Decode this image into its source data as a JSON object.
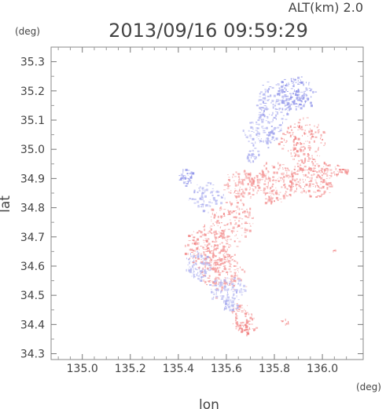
{
  "header": {
    "altitude_label": "ALT(km) 2.0",
    "timestamp": "2013/09/16 09:59:29"
  },
  "chart_data": {
    "type": "heatmap",
    "title": "2013/09/16 09:59:29",
    "subtitle": "ALT(km) 2.0",
    "xlabel": "lon",
    "ylabel": "lat",
    "x_unit": "(deg)",
    "y_unit": "(deg)",
    "xlim": [
      134.87,
      136.17
    ],
    "ylim": [
      34.28,
      35.35
    ],
    "xticks": [
      135.0,
      135.2,
      135.4,
      135.6,
      135.8,
      136.0
    ],
    "yticks": [
      34.3,
      34.4,
      34.5,
      34.6,
      34.7,
      34.8,
      34.9,
      35.0,
      35.1,
      35.2,
      35.3
    ],
    "xtick_labels": [
      "135.0",
      "135.2",
      "135.4",
      "135.6",
      "135.8",
      "136.0"
    ],
    "ytick_labels": [
      "34.3",
      "34.4",
      "34.5",
      "34.6",
      "34.7",
      "34.8",
      "34.9",
      "35.0",
      "35.1",
      "35.2",
      "35.3"
    ],
    "grid": false,
    "colors": {
      "positive": "#ef6f6f",
      "negative": "#7d82e6",
      "positive_soft": "#f7b6b6",
      "negative_soft": "#c7c9f4"
    },
    "clusters": [
      {
        "lon": 135.88,
        "lat": 35.19,
        "rx": 0.08,
        "ry": 0.06,
        "count": 180,
        "value": -0.65
      },
      {
        "lon": 135.79,
        "lat": 35.15,
        "rx": 0.07,
        "ry": 0.09,
        "count": 120,
        "value": -0.45
      },
      {
        "lon": 135.74,
        "lat": 35.06,
        "rx": 0.08,
        "ry": 0.05,
        "count": 90,
        "value": -0.3
      },
      {
        "lon": 135.92,
        "lat": 35.03,
        "rx": 0.1,
        "ry": 0.07,
        "count": 140,
        "value": 0.55
      },
      {
        "lon": 135.96,
        "lat": 34.91,
        "rx": 0.11,
        "ry": 0.07,
        "count": 220,
        "value": 0.45
      },
      {
        "lon": 135.8,
        "lat": 34.89,
        "rx": 0.1,
        "ry": 0.07,
        "count": 170,
        "value": 0.4
      },
      {
        "lon": 135.66,
        "lat": 34.88,
        "rx": 0.08,
        "ry": 0.05,
        "count": 110,
        "value": 0.35
      },
      {
        "lon": 135.52,
        "lat": 34.84,
        "rx": 0.07,
        "ry": 0.05,
        "count": 70,
        "value": -0.25
      },
      {
        "lon": 135.43,
        "lat": 34.91,
        "rx": 0.03,
        "ry": 0.03,
        "count": 40,
        "value": -0.65
      },
      {
        "lon": 135.62,
        "lat": 34.76,
        "rx": 0.1,
        "ry": 0.07,
        "count": 130,
        "value": 0.4
      },
      {
        "lon": 135.53,
        "lat": 34.66,
        "rx": 0.1,
        "ry": 0.08,
        "count": 230,
        "value": 0.55
      },
      {
        "lon": 135.58,
        "lat": 34.58,
        "rx": 0.09,
        "ry": 0.06,
        "count": 150,
        "value": 0.35
      },
      {
        "lon": 135.48,
        "lat": 34.6,
        "rx": 0.05,
        "ry": 0.05,
        "count": 90,
        "value": -0.25
      },
      {
        "lon": 135.6,
        "lat": 34.52,
        "rx": 0.08,
        "ry": 0.05,
        "count": 110,
        "value": -0.2
      },
      {
        "lon": 135.66,
        "lat": 34.43,
        "rx": 0.05,
        "ry": 0.05,
        "count": 65,
        "value": 0.45
      },
      {
        "lon": 135.68,
        "lat": 34.39,
        "rx": 0.04,
        "ry": 0.02,
        "count": 35,
        "value": 0.75
      },
      {
        "lon": 135.62,
        "lat": 34.47,
        "rx": 0.04,
        "ry": 0.03,
        "count": 35,
        "value": -0.35
      },
      {
        "lon": 135.71,
        "lat": 34.98,
        "rx": 0.03,
        "ry": 0.04,
        "count": 30,
        "value": -0.4
      },
      {
        "lon": 136.07,
        "lat": 34.93,
        "rx": 0.04,
        "ry": 0.02,
        "count": 25,
        "value": 0.55
      },
      {
        "lon": 136.05,
        "lat": 34.65,
        "rx": 0.01,
        "ry": 0.01,
        "count": 6,
        "value": 0.7
      },
      {
        "lon": 135.84,
        "lat": 34.41,
        "rx": 0.02,
        "ry": 0.01,
        "count": 8,
        "value": 0.65
      },
      {
        "lon": 135.78,
        "lat": 34.83,
        "rx": 0.02,
        "ry": 0.02,
        "count": 10,
        "value": 0.5
      }
    ]
  }
}
